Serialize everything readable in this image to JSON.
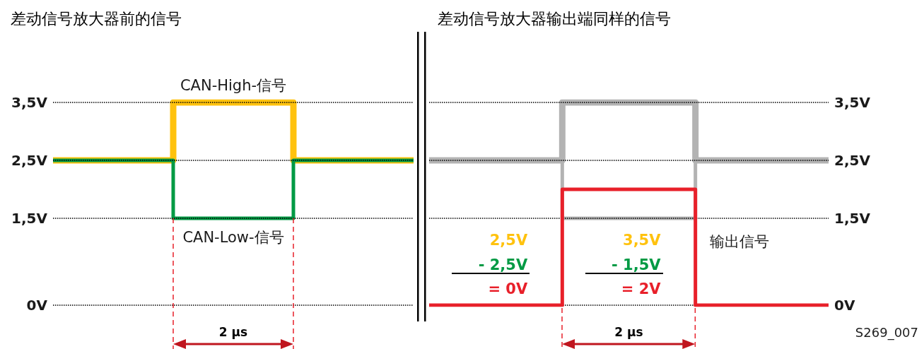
{
  "chart_data": [
    {
      "type": "step",
      "title": "差动信号放大器前的信号",
      "categories": [
        null,
        null,
        null,
        null
      ],
      "series": [
        {
          "name": "CAN-High-信号",
          "color": "#ffc20e",
          "values": [
            2.5,
            3.5,
            2.5,
            2.5
          ]
        },
        {
          "name": "CAN-Low-信号",
          "color": "#009a44",
          "values": [
            2.5,
            1.5,
            2.5,
            2.5
          ]
        }
      ],
      "ylim": [
        0,
        3.5
      ],
      "yticks": [
        {
          "value": 0,
          "label": "0V"
        },
        {
          "value": 1.5,
          "label": "1,5V"
        },
        {
          "value": 2.5,
          "label": "2,5V"
        },
        {
          "value": 3.5,
          "label": "3,5V"
        }
      ],
      "grid": "y",
      "legend": false,
      "marker": "none",
      "line_style": "solid",
      "annotations": [
        "2 μs"
      ]
    },
    {
      "type": "step",
      "title": "差动信号放大器输出端同样的信号",
      "categories": [
        null,
        null,
        null,
        null
      ],
      "series": [
        {
          "color": "#b3b3b3",
          "values": [
            2.5,
            3.5,
            2.5,
            2.5
          ]
        },
        {
          "color": "#b3b3b3",
          "values": [
            2.5,
            1.5,
            2.5,
            2.5
          ]
        },
        {
          "name": "输出信号",
          "color": "#e8202a",
          "values": [
            0,
            2,
            0,
            0
          ]
        }
      ],
      "ylim": [
        0,
        3.5
      ],
      "yticks": [
        {
          "value": 0,
          "label": "0V"
        },
        {
          "value": 1.5,
          "label": "1,5V"
        },
        {
          "value": 2.5,
          "label": "2,5V"
        },
        {
          "value": 3.5,
          "label": "3,5V"
        }
      ],
      "grid": "y",
      "legend": false,
      "marker": "none",
      "line_style": "solid",
      "annotations": [
        "2,5V",
        "- 2,5V",
        "= 0V",
        "3,5V",
        "- 1,5V",
        "= 2V",
        "2 μs",
        "S269_007"
      ]
    }
  ]
}
